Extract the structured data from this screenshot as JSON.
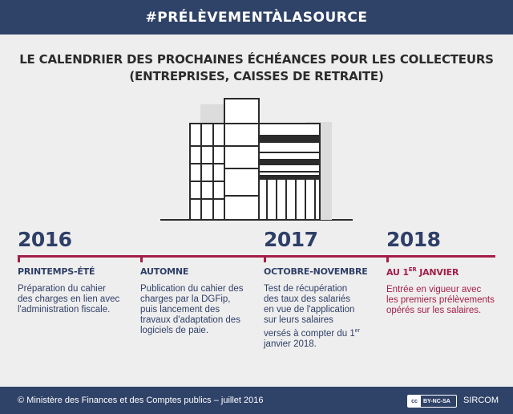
{
  "header": {
    "hashtag": "#PRÉLÈVEMENTÀLASOURCE"
  },
  "headline": {
    "line1": "LE CALENDRIER DES PROCHAINES ÉCHÉANCES POUR LES COLLECTEURS",
    "line2": "(ENTREPRISES, CAISSES DE RETRAITE)"
  },
  "illustration": {
    "icon": "office-building-icon"
  },
  "colors": {
    "navy": "#2f4268",
    "accent": "#a41e47",
    "background": "#efeeee"
  },
  "timeline": {
    "years": [
      "2016",
      "2017",
      "2018"
    ],
    "milestones": [
      {
        "period": "PRINTEMPS-ÉTÉ",
        "description": "Préparation du cahier des charges en lien avec l'administration fiscale."
      },
      {
        "period": "AUTOMNE",
        "description": "Publication du cahier des charges par la DGFip, puis lancement des travaux d'adaptation des logiciels de paie."
      },
      {
        "period": "OCTOBRE-NOVEMBRE",
        "description_before_sup": "Test de récupération des taux des salariés en vue de l'application sur leurs salaires versés à compter du 1",
        "description_sup": "er",
        "description_after_sup": " janvier 2018."
      },
      {
        "period_prefix": "AU 1",
        "period_sup": "ER",
        "period_suffix": " JANVIER",
        "description": "Entrée en vigueur avec les premiers prélèvements opérés sur les salaires."
      }
    ]
  },
  "footer": {
    "copyright": "© Ministère des Finances et des Comptes publics – juillet 2016",
    "license": "BY-NC-SA",
    "license_icon": "creative-commons-icon",
    "brand": "SIRCOM"
  }
}
